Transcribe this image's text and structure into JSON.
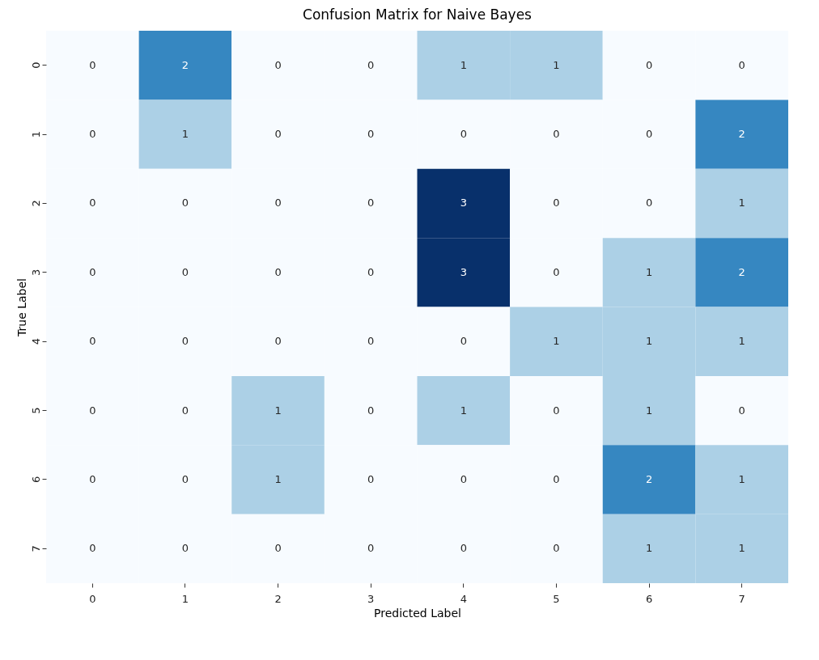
{
  "chart_data": {
    "type": "heatmap",
    "title": "Confusion Matrix for Naive Bayes",
    "xlabel": "Predicted Label",
    "ylabel": "True Label",
    "categories": [
      "0",
      "1",
      "2",
      "3",
      "4",
      "5",
      "6",
      "7"
    ],
    "y_categories": [
      "0",
      "1",
      "2",
      "3",
      "4",
      "5",
      "6",
      "7"
    ],
    "cells": [
      [
        0,
        2,
        0,
        0,
        1,
        1,
        0,
        0
      ],
      [
        0,
        1,
        0,
        0,
        0,
        0,
        0,
        2
      ],
      [
        0,
        0,
        0,
        0,
        3,
        0,
        0,
        1
      ],
      [
        0,
        0,
        0,
        0,
        3,
        0,
        1,
        2
      ],
      [
        0,
        0,
        0,
        0,
        0,
        1,
        1,
        1
      ],
      [
        0,
        0,
        1,
        0,
        1,
        0,
        1,
        0
      ],
      [
        0,
        0,
        1,
        0,
        0,
        0,
        2,
        1
      ],
      [
        0,
        0,
        0,
        0,
        0,
        0,
        1,
        1
      ]
    ],
    "data_labels": true,
    "legend": false
  }
}
